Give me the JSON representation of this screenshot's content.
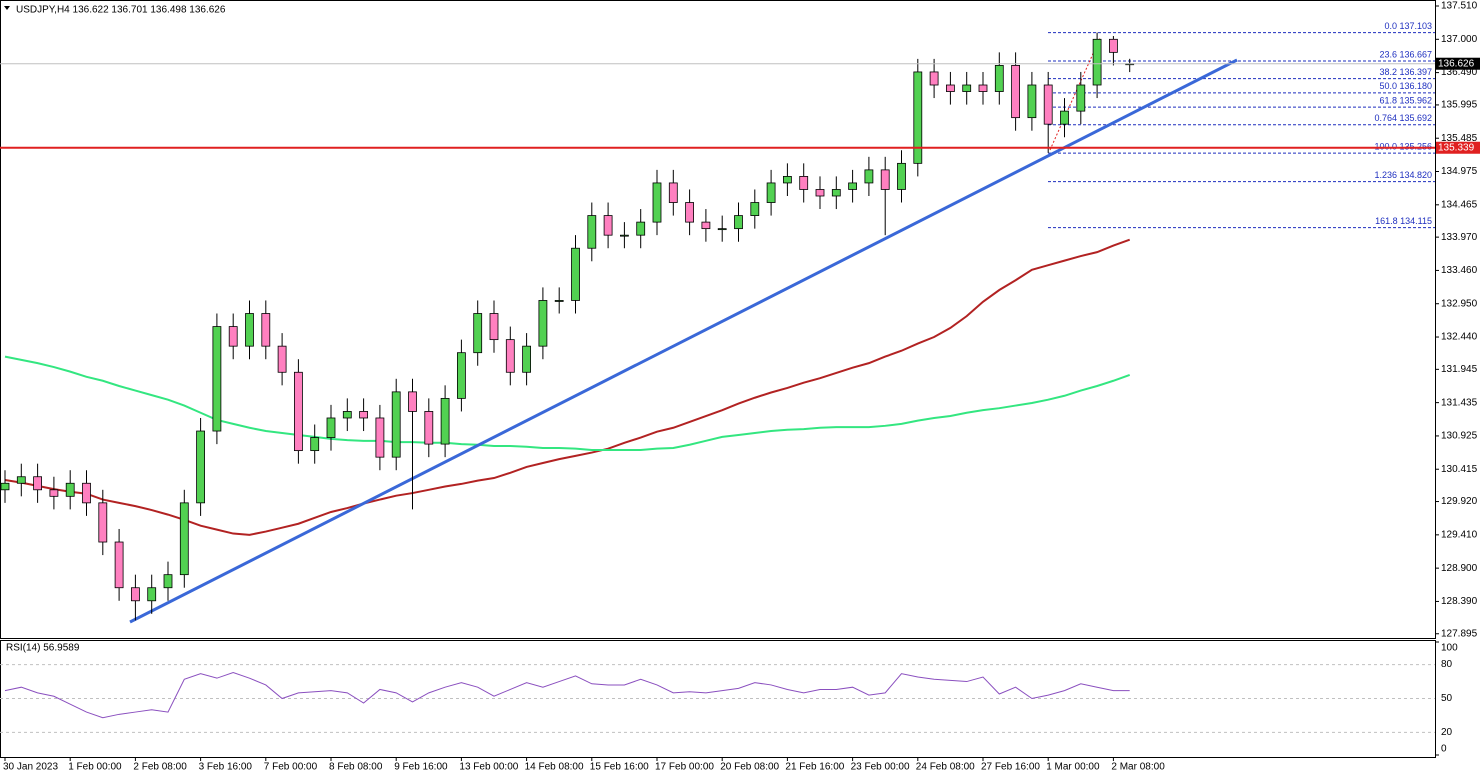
{
  "chart_data": [
    {
      "type": "candlestick",
      "title": "USDJPY,H4  136.622 136.701 136.498 136.626",
      "categories": [
        "30 Jan 2023",
        null,
        null,
        null,
        "1 Feb 00:00",
        null,
        null,
        null,
        "2 Feb 08:00",
        null,
        null,
        null,
        "3 Feb 16:00",
        null,
        null,
        null,
        "7 Feb 00:00",
        null,
        null,
        null,
        "8 Feb 08:00",
        null,
        null,
        null,
        "9 Feb 16:00",
        null,
        null,
        null,
        "13 Feb 00:00",
        null,
        null,
        null,
        "14 Feb 08:00",
        null,
        null,
        null,
        "15 Feb 16:00",
        null,
        null,
        null,
        "17 Feb 00:00",
        null,
        null,
        null,
        "20 Feb 08:00",
        null,
        null,
        null,
        "21 Feb 16:00",
        null,
        null,
        null,
        "23 Feb 00:00",
        null,
        null,
        null,
        "24 Feb 08:00",
        null,
        null,
        null,
        "27 Feb 16:00",
        null,
        null,
        null,
        "1 Mar 00:00",
        null,
        null,
        null,
        "2 Mar 08:00",
        null
      ],
      "open": [
        130.1,
        130.2,
        130.3,
        130.1,
        130.0,
        130.2,
        129.9,
        129.3,
        128.6,
        128.4,
        128.6,
        128.8,
        129.9,
        131.0,
        132.6,
        132.3,
        132.8,
        132.3,
        131.9,
        130.7,
        130.9,
        131.2,
        131.3,
        131.2,
        130.6,
        131.6,
        131.3,
        130.8,
        131.5,
        132.2,
        132.8,
        132.4,
        131.9,
        132.3,
        133.0,
        133.0,
        133.8,
        134.3,
        134.0,
        134.0,
        134.2,
        134.8,
        134.5,
        134.2,
        134.1,
        134.1,
        134.3,
        134.5,
        134.8,
        134.9,
        134.7,
        134.6,
        134.7,
        134.8,
        135.0,
        134.7,
        135.1,
        136.5,
        136.3,
        136.2,
        136.3,
        136.2,
        136.6,
        135.8,
        136.3,
        135.7,
        135.9,
        136.3,
        137.0,
        136.622
      ],
      "high": [
        130.4,
        130.5,
        130.5,
        130.3,
        130.4,
        130.4,
        130.1,
        129.5,
        128.8,
        128.8,
        129.0,
        130.1,
        131.2,
        132.8,
        132.8,
        133.0,
        133.0,
        132.5,
        132.1,
        131.1,
        131.4,
        131.5,
        131.5,
        131.4,
        131.8,
        131.8,
        131.5,
        131.7,
        132.4,
        133.0,
        133.0,
        132.6,
        132.5,
        133.2,
        133.2,
        134.0,
        134.5,
        134.5,
        134.2,
        134.4,
        135.0,
        135.0,
        134.7,
        134.4,
        134.3,
        134.5,
        134.7,
        135.0,
        135.1,
        135.1,
        134.9,
        134.9,
        135.0,
        135.2,
        135.2,
        135.3,
        136.7,
        136.7,
        136.5,
        136.5,
        136.5,
        136.8,
        136.8,
        136.5,
        136.5,
        136.1,
        136.5,
        137.103,
        137.05,
        136.701
      ],
      "low": [
        129.9,
        130.0,
        129.9,
        129.8,
        129.8,
        129.7,
        129.1,
        128.4,
        128.1,
        128.2,
        128.4,
        128.6,
        129.7,
        130.8,
        132.1,
        132.1,
        132.1,
        131.7,
        130.5,
        130.5,
        130.7,
        131.0,
        131.0,
        130.4,
        130.4,
        129.8,
        130.6,
        130.6,
        131.3,
        132.0,
        132.2,
        131.7,
        131.7,
        132.1,
        132.8,
        132.8,
        133.6,
        133.8,
        133.8,
        133.8,
        134.0,
        134.3,
        134.0,
        133.9,
        133.9,
        133.9,
        134.1,
        134.3,
        134.6,
        134.5,
        134.4,
        134.4,
        134.5,
        134.6,
        134.0,
        134.5,
        134.9,
        136.1,
        136.0,
        136.0,
        136.0,
        136.0,
        135.6,
        135.6,
        135.26,
        135.5,
        135.7,
        136.1,
        136.6,
        136.498
      ],
      "close": [
        130.2,
        130.3,
        130.1,
        130.0,
        130.2,
        129.9,
        129.3,
        128.6,
        128.4,
        128.6,
        128.8,
        129.9,
        131.0,
        132.6,
        132.3,
        132.8,
        132.3,
        131.9,
        130.7,
        130.9,
        131.2,
        131.3,
        131.2,
        130.6,
        131.6,
        131.3,
        130.8,
        131.5,
        132.2,
        132.8,
        132.4,
        131.9,
        132.3,
        133.0,
        133.0,
        133.8,
        134.3,
        134.0,
        134.0,
        134.2,
        134.8,
        134.5,
        134.2,
        134.1,
        134.1,
        134.3,
        134.5,
        134.8,
        134.9,
        134.7,
        134.6,
        134.7,
        134.8,
        135.0,
        134.7,
        135.1,
        136.5,
        136.3,
        136.2,
        136.3,
        136.2,
        136.6,
        135.8,
        136.3,
        135.7,
        135.9,
        136.3,
        137.0,
        136.8,
        136.626
      ],
      "up_color": "#52d152",
      "down_color": "#ff80c0",
      "series": [
        {
          "color": "#b22222",
          "values": [
            130.25,
            130.21,
            130.16,
            130.11,
            130.07,
            130.04,
            129.95,
            129.9,
            129.85,
            129.79,
            129.72,
            129.64,
            129.55,
            129.49,
            129.43,
            129.41,
            129.46,
            129.52,
            129.58,
            129.67,
            129.76,
            129.82,
            129.89,
            129.95,
            130.01,
            130.05,
            130.1,
            130.15,
            130.19,
            130.24,
            130.28,
            130.36,
            130.45,
            130.51,
            130.57,
            130.62,
            130.67,
            130.73,
            130.82,
            130.9,
            130.99,
            131.05,
            131.14,
            131.23,
            131.32,
            131.42,
            131.51,
            131.59,
            131.66,
            131.74,
            131.81,
            131.89,
            131.97,
            132.04,
            132.14,
            132.23,
            132.34,
            132.44,
            132.58,
            132.76,
            132.98,
            133.16,
            133.31,
            133.47,
            133.54,
            133.61,
            133.68,
            133.74,
            133.84,
            133.93
          ]
        },
        {
          "color": "#33e680",
          "values": [
            132.14,
            132.09,
            132.04,
            131.98,
            131.91,
            131.83,
            131.77,
            131.69,
            131.62,
            131.55,
            131.48,
            131.39,
            131.28,
            131.17,
            131.11,
            131.05,
            131.0,
            130.97,
            130.94,
            130.91,
            130.88,
            130.86,
            130.85,
            130.85,
            130.83,
            130.83,
            130.82,
            130.82,
            130.8,
            130.79,
            130.77,
            130.77,
            130.76,
            130.74,
            130.74,
            130.73,
            130.71,
            130.71,
            130.71,
            130.71,
            130.73,
            130.74,
            130.79,
            130.85,
            130.91,
            130.94,
            130.97,
            131.0,
            131.02,
            131.03,
            131.05,
            131.06,
            131.06,
            131.06,
            131.08,
            131.11,
            131.16,
            131.2,
            131.23,
            131.28,
            131.32,
            131.35,
            131.39,
            131.43,
            131.48,
            131.54,
            131.62,
            131.69,
            131.77,
            131.86
          ]
        }
      ],
      "ylim": [
        127.83,
        137.602
      ],
      "yticks": [
        {
          "value": 137.51,
          "label": "137.510"
        },
        {
          "value": 137.0,
          "label": "137.000"
        },
        {
          "value": 136.49,
          "label": "136.490"
        },
        135.995,
        135.485,
        134.975,
        134.465,
        {
          "value": 133.97,
          "label": "133.970"
        },
        {
          "value": 133.46,
          "label": "133.460"
        },
        {
          "value": 132.95,
          "label": "132.950"
        },
        {
          "value": 132.44,
          "label": "132.440"
        },
        131.945,
        131.435,
        130.925,
        130.415,
        {
          "value": 129.92,
          "label": "129.920"
        },
        {
          "value": 129.41,
          "label": "129.410"
        },
        {
          "value": 128.9,
          "label": "128.900"
        },
        {
          "value": 128.39,
          "label": "128.390"
        },
        127.895
      ],
      "fib_levels": [
        {
          "value": 137.103,
          "label": "0.0 137.103"
        },
        {
          "value": 136.667,
          "label": "23.6 136.667"
        },
        {
          "value": 136.397,
          "label": "38.2 136.397"
        },
        {
          "value": 136.18,
          "label": "50.0 136.180"
        },
        {
          "value": 135.962,
          "label": "61.8 135.962"
        },
        {
          "value": 135.692,
          "label": "0.764 135.692"
        },
        {
          "value": 135.256,
          "label": "100.0 135.256"
        },
        {
          "value": 134.82,
          "label": "1.236 134.820"
        },
        {
          "value": 134.115,
          "label": "161.8 134.115"
        }
      ],
      "fib_color": "#1e2fbf",
      "hline": 135.339,
      "hline_color": "#e02020",
      "current_price": 136.626
    },
    {
      "type": "line",
      "title": "RSI(14) 56.9589",
      "color": "#8a4fbf",
      "values": [
        57,
        60,
        55,
        52,
        45,
        38,
        33,
        36,
        38,
        40,
        38,
        67,
        72,
        68,
        73,
        68,
        62,
        50,
        55,
        56,
        57,
        55,
        46,
        58,
        55,
        47,
        55,
        60,
        64,
        60,
        52,
        58,
        64,
        60,
        65,
        70,
        63,
        62,
        62,
        67,
        62,
        55,
        56,
        55,
        57,
        59,
        64,
        62,
        58,
        55,
        58,
        58,
        60,
        53,
        55,
        72,
        69,
        67,
        66,
        65,
        69,
        54,
        60,
        50,
        53,
        57,
        63,
        60,
        57,
        56.9589
      ],
      "ylim": [
        0,
        100
      ],
      "yticks": [
        100,
        80,
        50,
        20,
        0
      ]
    }
  ]
}
